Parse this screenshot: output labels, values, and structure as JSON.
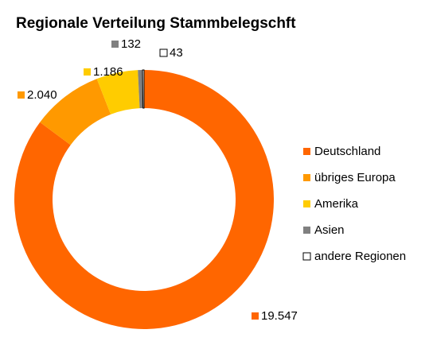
{
  "chart_data": {
    "type": "donut",
    "title": "Regionale Verteilung Stammbelegschft",
    "categories": [
      "Deutschland",
      "übriges Europa",
      "Amerika",
      "Asien",
      "andere Regionen"
    ],
    "values": [
      19547,
      2040,
      1186,
      132,
      43
    ],
    "value_labels": [
      "19.547",
      "2.040",
      "1.186",
      "132",
      "43"
    ],
    "colors": [
      "#ff6600",
      "#ff9900",
      "#ffcc00",
      "#808080",
      "#ffffff"
    ],
    "legend": "right"
  }
}
